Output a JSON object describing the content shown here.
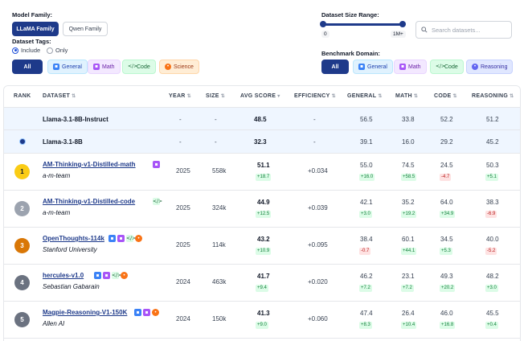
{
  "filters": {
    "model_family_label": "Model Family:",
    "model_family_options": [
      "LLaMA Family",
      "Qwen Family"
    ],
    "dataset_tags_label": "Dataset Tags:",
    "tag_mode_include": "Include",
    "tag_mode_only": "Only",
    "tag_buttons": [
      "All",
      "General",
      "Math",
      "Code",
      "Science"
    ],
    "dataset_size_label": "Dataset Size Range:",
    "size_min": "0",
    "size_max": "1M+",
    "search_placeholder": "Search datasets...",
    "benchmark_domain_label": "Benchmark Domain:",
    "domain_buttons": [
      "All",
      "General",
      "Math",
      "Code",
      "Reasoning"
    ]
  },
  "table": {
    "headers": {
      "rank": "RANK",
      "dataset": "DATASET",
      "year": "YEAR",
      "size": "SIZE",
      "avg_score": "AVG SCORE",
      "efficiency": "EFFICIENCY",
      "general": "GENERAL",
      "math": "MATH",
      "code": "CODE",
      "reasoning": "REASONING"
    },
    "reference_rows": [
      {
        "name": "Llama-3.1-8B-Instruct",
        "year": "-",
        "size": "-",
        "avg": "48.5",
        "eff": "-",
        "general": "56.5",
        "math": "33.8",
        "code": "52.2",
        "reasoning": "51.2"
      },
      {
        "name": "Llama-3.1-8B",
        "year": "-",
        "size": "-",
        "avg": "32.3",
        "eff": "-",
        "general": "39.1",
        "math": "16.0",
        "code": "29.2",
        "reasoning": "45.2"
      }
    ],
    "rows": [
      {
        "rank": "1",
        "name": "AM-Thinking-v1-Distilled-math",
        "author": "a-m-team",
        "tags": [
          "math"
        ],
        "year": "2025",
        "size": "558k",
        "avg": "51.1",
        "avg_d": "+18.7",
        "eff": "+0.034",
        "general": "55.0",
        "general_d": "+16.0",
        "math": "74.5",
        "math_d": "+58.5",
        "code": "24.5",
        "code_d": "-4.7",
        "reasoning": "50.3",
        "reasoning_d": "+5.1"
      },
      {
        "rank": "2",
        "name": "AM-Thinking-v1-Distilled-code",
        "author": "a-m-team",
        "tags": [
          "code"
        ],
        "year": "2025",
        "size": "324k",
        "avg": "44.9",
        "avg_d": "+12.5",
        "eff": "+0.039",
        "general": "42.1",
        "general_d": "+3.0",
        "math": "35.2",
        "math_d": "+19.2",
        "code": "64.0",
        "code_d": "+34.9",
        "reasoning": "38.3",
        "reasoning_d": "-6.9"
      },
      {
        "rank": "3",
        "name": "OpenThoughts-114k",
        "author": "Stanford University",
        "tags": [
          "general",
          "math",
          "code",
          "science"
        ],
        "year": "2025",
        "size": "114k",
        "avg": "43.2",
        "avg_d": "+10.9",
        "eff": "+0.095",
        "general": "38.4",
        "general_d": "-0.7",
        "math": "60.1",
        "math_d": "+44.1",
        "code": "34.5",
        "code_d": "+5.3",
        "reasoning": "40.0",
        "reasoning_d": "-5.2"
      },
      {
        "rank": "4",
        "name": "hercules-v1.0",
        "author": "Sebastian Gabarain",
        "tags": [
          "general",
          "math",
          "code",
          "science"
        ],
        "year": "2024",
        "size": "463k",
        "avg": "41.7",
        "avg_d": "+9.4",
        "eff": "+0.020",
        "general": "46.2",
        "general_d": "+7.2",
        "math": "23.1",
        "math_d": "+7.2",
        "code": "49.3",
        "code_d": "+20.2",
        "reasoning": "48.2",
        "reasoning_d": "+3.0"
      },
      {
        "rank": "5",
        "name": "Magpie-Reasoning-V1-150K",
        "author": "Allen AI",
        "tags": [
          "general",
          "math",
          "science"
        ],
        "year": "2024",
        "size": "150k",
        "avg": "41.3",
        "avg_d": "+9.0",
        "eff": "+0.060",
        "general": "47.4",
        "general_d": "+8.3",
        "math": "26.4",
        "math_d": "+10.4",
        "code": "46.0",
        "code_d": "+16.8",
        "reasoning": "45.5",
        "reasoning_d": "+0.4"
      }
    ]
  },
  "colors": {
    "primary": "#1e3a8a",
    "rank1": "#facc15",
    "rank2": "#9ca3af",
    "rank3": "#d97706",
    "rank_other": "#6b7280"
  }
}
